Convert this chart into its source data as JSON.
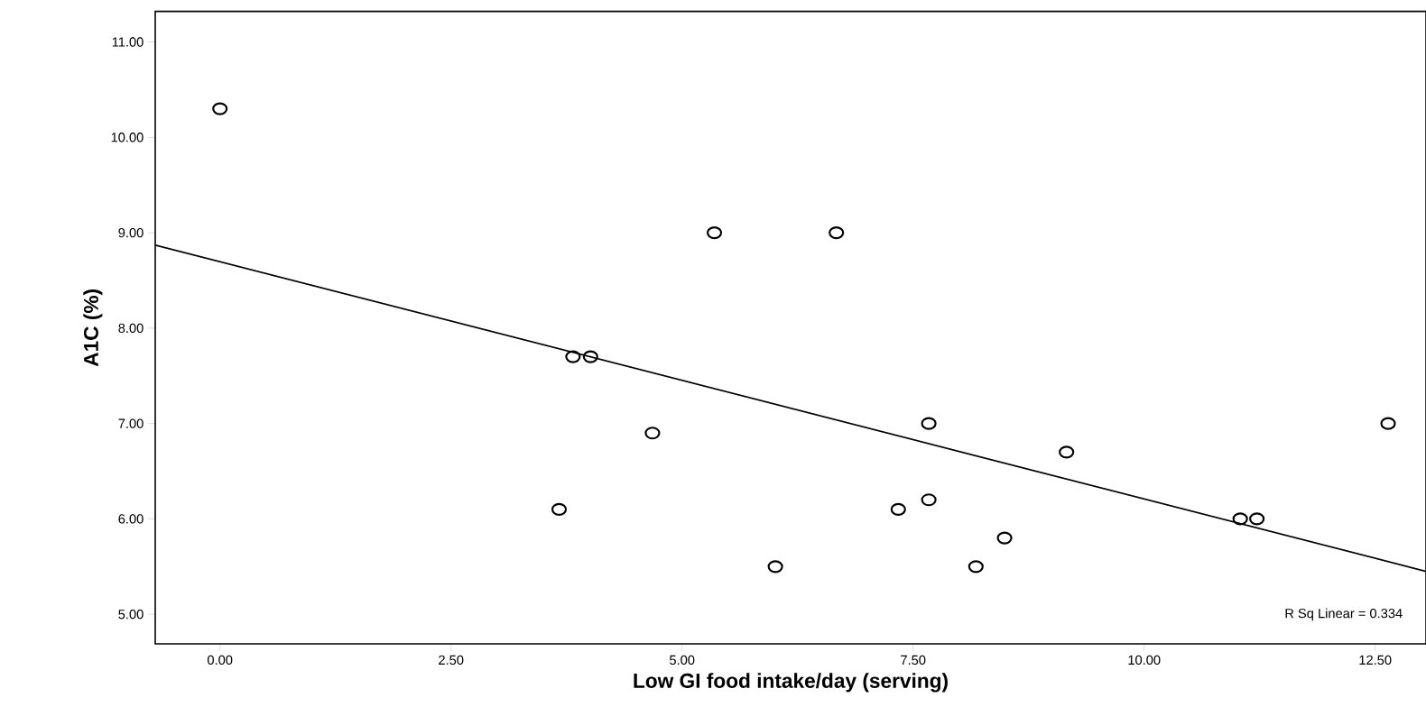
{
  "chart_data": {
    "type": "scatter",
    "xlabel": "Low GI food intake/day (serving)",
    "ylabel": "A1C (%)",
    "xlim": [
      -0.7,
      13.05
    ],
    "ylim": [
      4.69,
      11.32
    ],
    "xticks": [
      {
        "value": 0,
        "label": "0.00"
      },
      {
        "value": 2.5,
        "label": "2.50"
      },
      {
        "value": 5,
        "label": "5.00"
      },
      {
        "value": 7.5,
        "label": "7.50"
      },
      {
        "value": 10,
        "label": "10.00"
      },
      {
        "value": 12.5,
        "label": "12.50"
      }
    ],
    "yticks": [
      {
        "value": 5,
        "label": "5.00"
      },
      {
        "value": 6,
        "label": "6.00"
      },
      {
        "value": 7,
        "label": "7.00"
      },
      {
        "value": 8,
        "label": "8.00"
      },
      {
        "value": 9,
        "label": "9.00"
      },
      {
        "value": 10,
        "label": "10.00"
      },
      {
        "value": 11,
        "label": "11.00"
      }
    ],
    "grid": false,
    "annotations": [
      "R Sq Linear = 0.334"
    ],
    "series": [
      {
        "marker": "circle",
        "color": "#000000",
        "x": [
          0.0,
          5.35,
          6.67,
          3.82,
          4.01,
          4.68,
          3.67,
          6.01,
          7.34,
          7.67,
          7.67,
          8.18,
          8.49,
          9.16,
          11.04,
          11.22,
          12.64
        ],
        "values": [
          10.3,
          9.0,
          9.0,
          7.7,
          7.7,
          6.9,
          6.1,
          5.5,
          6.1,
          7.0,
          6.2,
          5.5,
          5.8,
          6.7,
          6.0,
          6.0,
          7.0
        ]
      },
      {
        "type": "line",
        "marker": "none",
        "color": "#000000",
        "x": [
          -0.7,
          13.05
        ],
        "values": [
          8.87,
          5.45
        ]
      }
    ]
  }
}
